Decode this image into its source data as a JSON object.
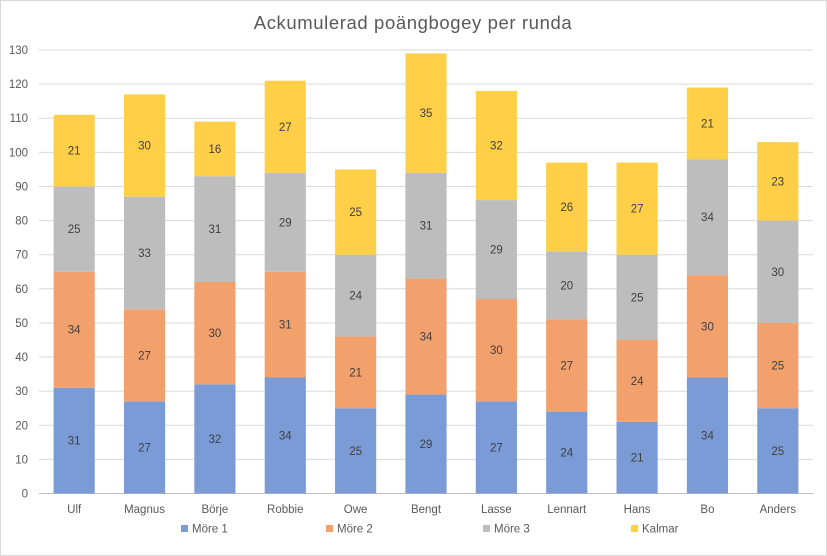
{
  "chart_data": {
    "type": "bar",
    "stacked": true,
    "title": "Ackumulerad poängbogey per runda",
    "xlabel": "",
    "ylabel": "",
    "ylim": [
      0,
      130
    ],
    "yticks": [
      0,
      10,
      20,
      30,
      40,
      50,
      60,
      70,
      80,
      90,
      100,
      110,
      120,
      130
    ],
    "grid": true,
    "legend_position": "bottom",
    "categories": [
      "Ulf",
      "Magnus",
      "Börje",
      "Robbie",
      "Owe",
      "Bengt",
      "Lasse",
      "Lennart",
      "Hans",
      "Bo",
      "Anders"
    ],
    "series": [
      {
        "name": "Möre 1",
        "color": "#7b9bd6",
        "values": [
          31,
          27,
          32,
          34,
          25,
          29,
          27,
          24,
          21,
          34,
          25
        ]
      },
      {
        "name": "Möre 2",
        "color": "#f2a06c",
        "values": [
          34,
          27,
          30,
          31,
          21,
          34,
          30,
          27,
          24,
          30,
          25
        ]
      },
      {
        "name": "Möre 3",
        "color": "#bdbdbd",
        "values": [
          25,
          33,
          31,
          29,
          24,
          31,
          29,
          20,
          25,
          34,
          30
        ]
      },
      {
        "name": "Kalmar",
        "color": "#ffcf48",
        "values": [
          21,
          30,
          16,
          27,
          25,
          35,
          32,
          26,
          27,
          21,
          23
        ]
      }
    ]
  }
}
